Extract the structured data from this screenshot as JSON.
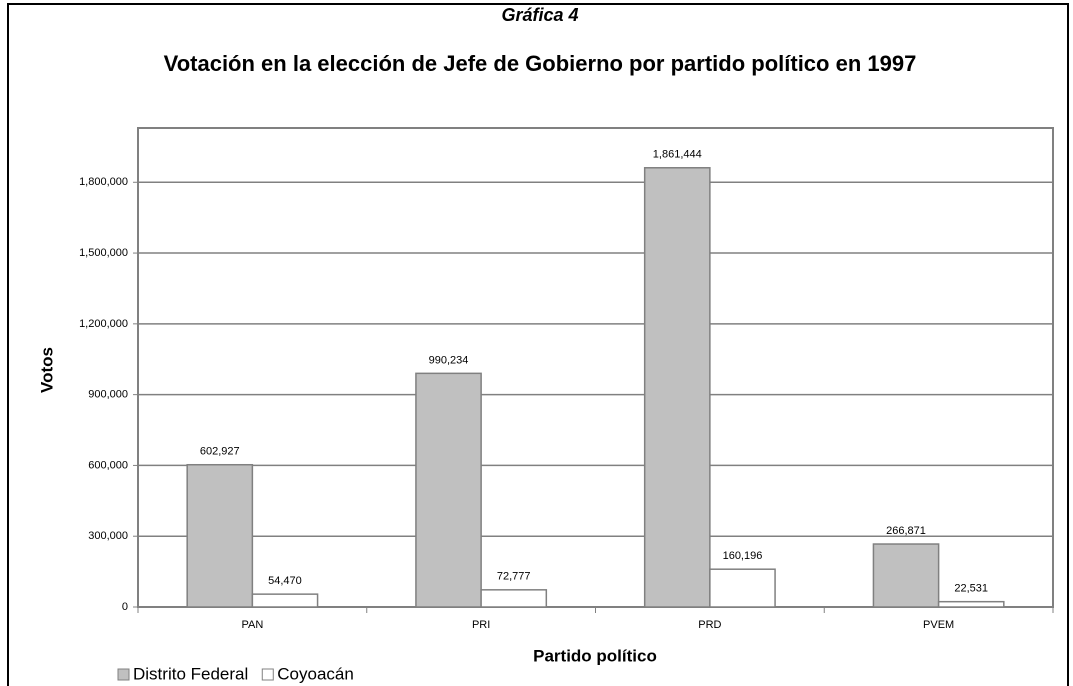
{
  "chart_data": {
    "type": "bar",
    "subtitle": "Gráfica 4",
    "title": "Votación en la elección de Jefe de Gobierno por partido político en 1997",
    "x_label": "Partido político",
    "y_label": "Votos",
    "categories": [
      "PAN",
      "PRI",
      "PRD",
      "PVEM"
    ],
    "series": [
      {
        "name": "Distrito Federal",
        "color": "#c0c0c0",
        "values": [
          602927,
          990234,
          1861444,
          266871
        ],
        "value_labels": [
          "602,927",
          "990,234",
          "1,861,444",
          "266,871"
        ]
      },
      {
        "name": "Coyoacán",
        "color": "#ffffff",
        "values": [
          54470,
          72777,
          160196,
          22531
        ],
        "value_labels": [
          "54,470",
          "72,777",
          "160,196",
          "22,531"
        ]
      }
    ],
    "ylim": [
      0,
      2030000
    ],
    "yticks": [
      0,
      {
        "value": 300000,
        "label": "300,000"
      },
      {
        "value": 600000,
        "label": "600,000"
      },
      {
        "value": 900000,
        "label": "900,000"
      },
      {
        "value": 1200000,
        "label": "1,200,000"
      },
      {
        "value": 1500000,
        "label": "1,500,000"
      },
      {
        "value": 1800000,
        "label": "1,800,000"
      }
    ],
    "grid": true,
    "legend": "bottom-left"
  }
}
